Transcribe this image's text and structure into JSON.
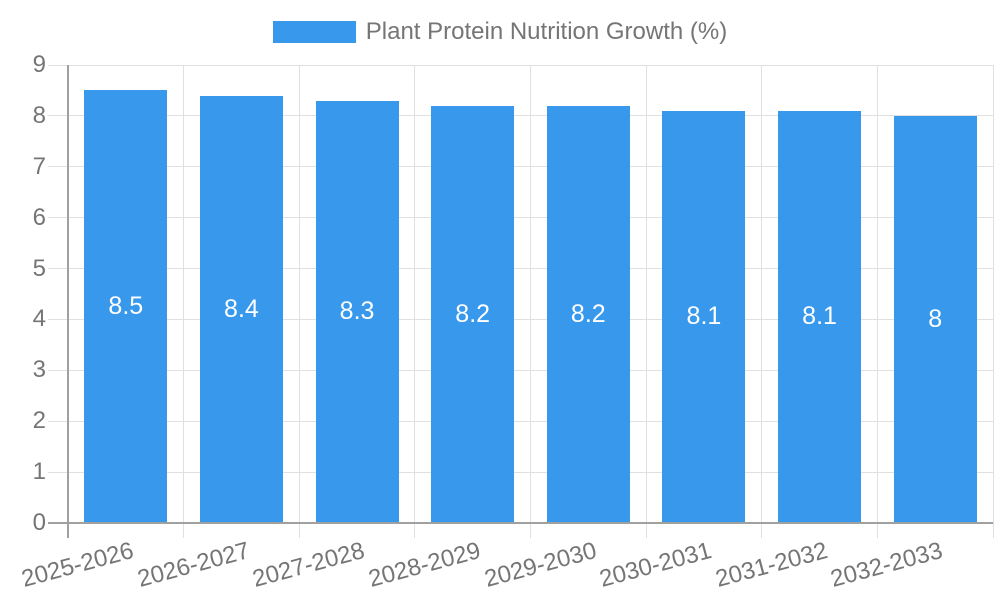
{
  "legend": {
    "label": "Plant Protein Nutrition Growth (%)"
  },
  "colors": {
    "bar": "#3899EC",
    "axis_line": "#A0A0A0",
    "grid_line": "#E0E0E0",
    "axis_text": "#757575",
    "bar_label_text": "#FFFFFF",
    "background": "#FFFFFF"
  },
  "chart_data": {
    "type": "bar",
    "title": "Plant Protein Nutrition Growth (%)",
    "categories": [
      "2025-2026",
      "2026-2027",
      "2027-2028",
      "2028-2029",
      "2029-2030",
      "2030-2031",
      "2031-2032",
      "2032-2033"
    ],
    "values": [
      8.5,
      8.4,
      8.3,
      8.2,
      8.2,
      8.1,
      8.1,
      8
    ],
    "value_labels": [
      "8.5",
      "8.4",
      "8.3",
      "8.2",
      "8.2",
      "8.1",
      "8.1",
      "8"
    ],
    "xlabel": "",
    "ylabel": "",
    "ylim": [
      0,
      9
    ],
    "y_ticks": [
      0,
      1,
      2,
      3,
      4,
      5,
      6,
      7,
      8,
      9
    ],
    "grid": true,
    "legend_position": "top-center",
    "x_label_rotation_deg": -15,
    "bar_value_label_position": "inside-center"
  }
}
